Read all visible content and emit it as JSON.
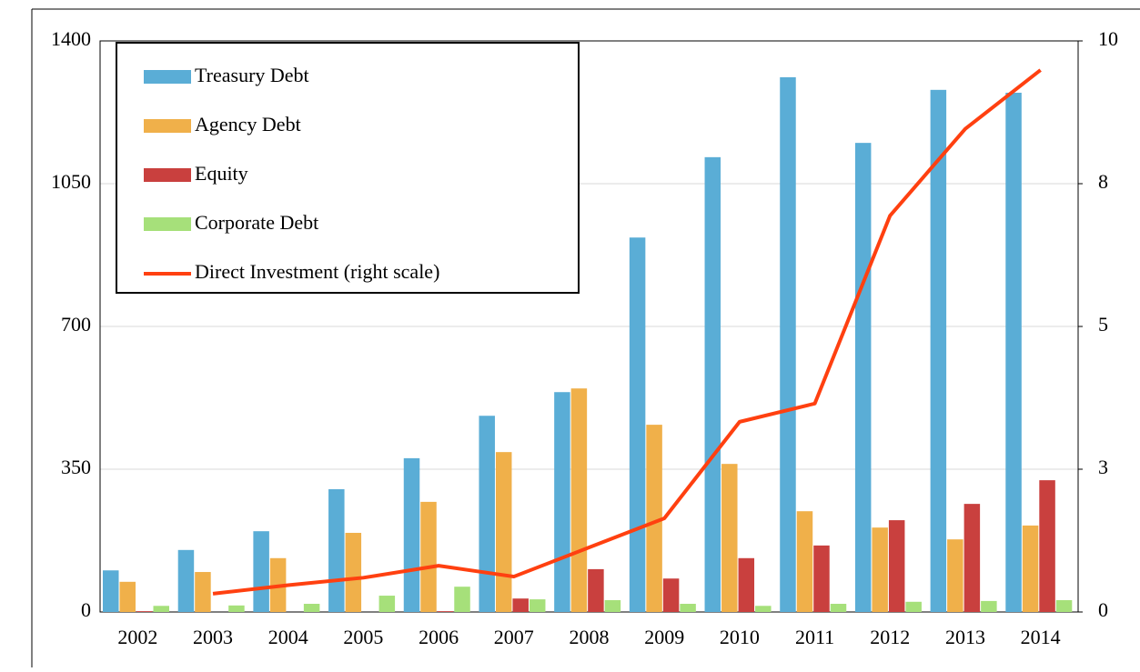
{
  "chart_data": {
    "type": "bar",
    "categories": [
      "2002",
      "2003",
      "2004",
      "2005",
      "2006",
      "2007",
      "2008",
      "2009",
      "2010",
      "2011",
      "2012",
      "2013",
      "2014"
    ],
    "series": [
      {
        "name": "Treasury Debt",
        "color": "#5aadd6",
        "values": [
          102,
          152,
          198,
          301,
          377,
          481,
          539,
          918,
          1115,
          1311,
          1150,
          1280,
          1273
        ]
      },
      {
        "name": "Agency Debt",
        "color": "#f0b04a",
        "values": [
          74,
          98,
          132,
          194,
          270,
          392,
          548,
          459,
          363,
          247,
          207,
          178,
          212
        ]
      },
      {
        "name": "Equity",
        "color": "#c9403e",
        "values": [
          2,
          0,
          0,
          0,
          2,
          33,
          105,
          82,
          132,
          163,
          225,
          265,
          323
        ]
      },
      {
        "name": "Corporate Debt",
        "color": "#a6e07a",
        "values": [
          15,
          16,
          20,
          40,
          62,
          31,
          29,
          20,
          15,
          20,
          25,
          27,
          29
        ]
      },
      {
        "name": "Direct Investment (right scale)",
        "color": "#ff4010",
        "type": "line",
        "axis": "y2",
        "values": [
          null,
          0.32,
          0.47,
          0.6,
          0.81,
          0.62,
          1.13,
          1.64,
          3.33,
          3.65,
          6.94,
          8.46,
          9.49
        ]
      }
    ],
    "ylim": [
      0,
      1400
    ],
    "yticks": [
      0,
      350,
      700,
      1050,
      1400
    ],
    "y2lim": [
      0,
      10
    ],
    "y2ticks": [
      0,
      {
        "value": 2.5,
        "label": "3"
      },
      5,
      {
        "value": 7.5,
        "label": "8"
      },
      10
    ],
    "grid": true,
    "legend": "upper left"
  }
}
